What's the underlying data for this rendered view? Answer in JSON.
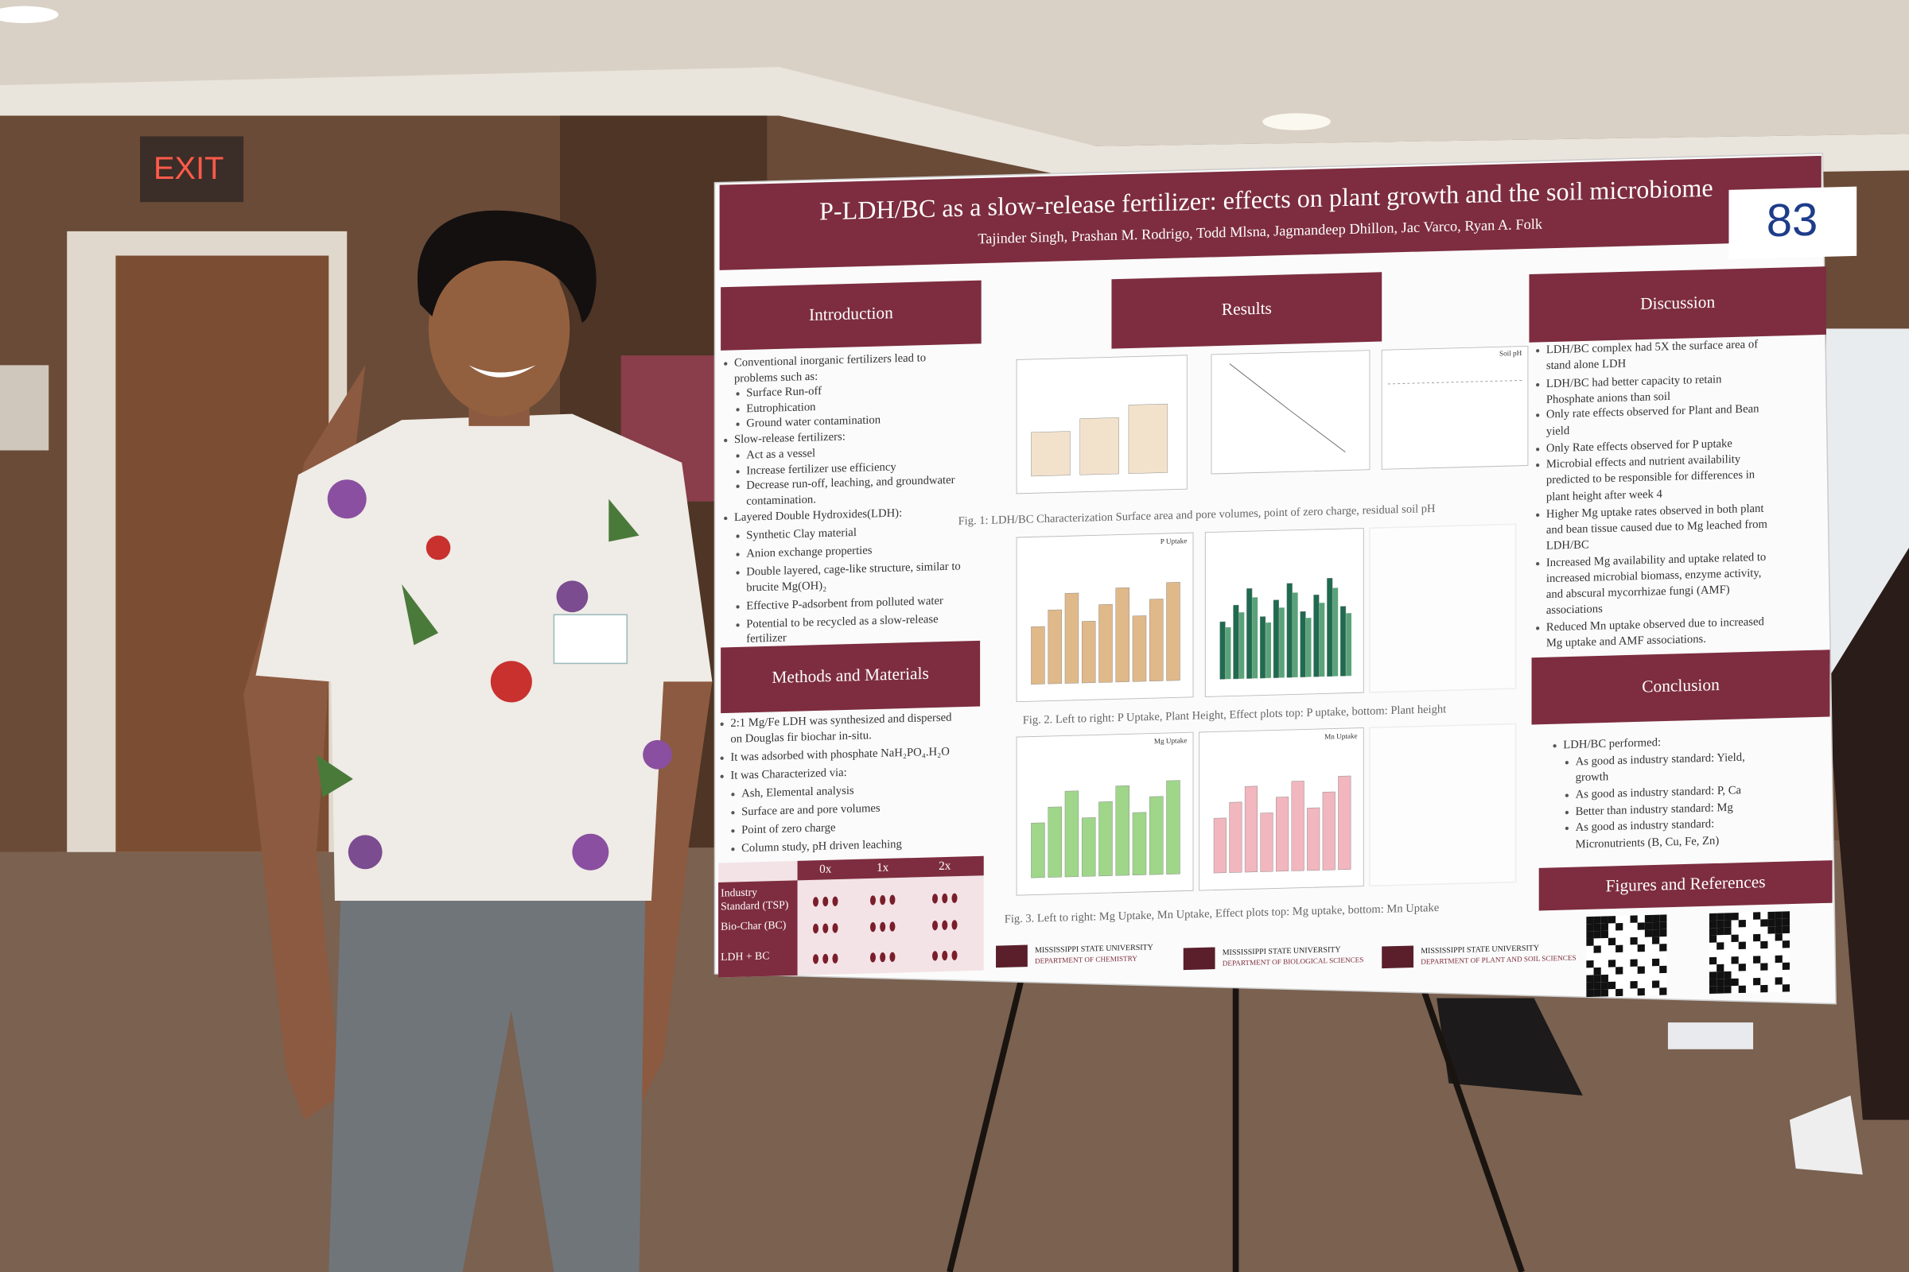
{
  "scene": {
    "exit_sign": "EXIT"
  },
  "poster": {
    "title": "P-LDH/BC as a slow-release fertilizer: effects on plant growth and the soil microbiome",
    "authors": "Tajinder Singh, Prashan M. Rodrigo, Todd Mlsna, Jagmandeep Dhillon, Jac Varco,  Ryan A. Folk",
    "number": "83",
    "introduction": {
      "heading": "Introduction",
      "lines": [
        "Conventional inorganic fertilizers lead to",
        "problems such as:",
        "Surface Run-off",
        "Eutrophication",
        "Ground water contamination",
        "Slow-release fertilizers:",
        "Act as a vessel",
        "Increase fertilizer use efficiency",
        "Decrease run-off, leaching, and groundwater",
        "contamination.",
        "Layered Double Hydroxides(LDH):",
        "Synthetic Clay material",
        "Anion exchange properties",
        "Double layered, cage-like structure, similar to",
        "brucite Mg(OH)₂",
        "Effective P-adsorbent from polluted water",
        "Potential to be recycled as a slow-release",
        "fertilizer"
      ]
    },
    "methods": {
      "heading": "Methods and Materials",
      "lines": [
        "2:1 Mg/Fe LDH was synthesized and dispersed",
        "on Douglas fir biochar in-situ.",
        "It was adsorbed with phosphate NaH₂PO₄.H₂O",
        "It was Characterized via:",
        "Ash, Elemental analysis",
        "Surface are and pore volumes",
        "Point of zero charge",
        "Column study, pH driven leaching"
      ]
    },
    "table": {
      "columns": [
        "0x",
        "1x",
        "2x"
      ],
      "rows": [
        [
          "Industry",
          "Standard (TSP)"
        ],
        [
          "Bio-Char (BC)"
        ],
        [
          "LDH + BC"
        ]
      ]
    },
    "results": {
      "heading": "Results",
      "panel_labels": [
        "P Uptake",
        "Soil pH",
        "Mg Uptake",
        "Mn Uptake"
      ],
      "fig1_caption": "Fig. 1: LDH/BC Characterization Surface area and pore volumes, point of zero charge, residual soil pH",
      "fig2_caption": "Fig. 2. Left to right: P Uptake, Plant Height, Effect plots top: P uptake, bottom: Plant height",
      "fig3_caption": "Fig. 3. Left to right: Mg Uptake, Mn Uptake, Effect plots top: Mg uptake, bottom: Mn Uptake"
    },
    "discussion": {
      "heading": "Discussion",
      "lines": [
        "LDH/BC complex had 5X the surface area of",
        "stand alone LDH",
        "LDH/BC had better capacity to retain",
        "Phosphate anions than soil",
        "Only rate effects observed for Plant and Bean",
        "yield",
        "Only Rate effects observed for P uptake",
        "Microbial effects and nutrient availability",
        "predicted to be responsible for differences in",
        "plant height after week 4",
        "Higher Mg uptake rates observed in both plant",
        "and bean tissue caused due to Mg leached from",
        "LDH/BC",
        "Increased Mg availability and uptake related to",
        "increased microbial biomass, enzyme activity,",
        "and abscural mycorrhizae fungi (AMF)",
        "associations",
        "Reduced Mn uptake observed due to increased",
        "Mg uptake and AMF associations."
      ]
    },
    "conclusion": {
      "heading": "Conclusion",
      "lines": [
        "LDH/BC performed:",
        "As good as industry standard: Yield,",
        "growth",
        "As good as industry standard: P, Ca",
        "Better than industry standard: Mg",
        "As good as industry standard:",
        "Micronutrients (B, Cu, Fe, Zn)"
      ]
    },
    "references": {
      "heading": "Figures and References"
    },
    "logos": [
      {
        "university": "MISSISSIPPI STATE UNIVERSITY",
        "department": "DEPARTMENT OF CHEMISTRY"
      },
      {
        "university": "MISSISSIPPI STATE UNIVERSITY",
        "department": "DEPARTMENT OF BIOLOGICAL SCIENCES"
      },
      {
        "university": "MISSISSIPPI STATE UNIVERSITY",
        "department": "DEPARTMENT OF PLANT AND SOIL SCIENCES"
      }
    ]
  }
}
